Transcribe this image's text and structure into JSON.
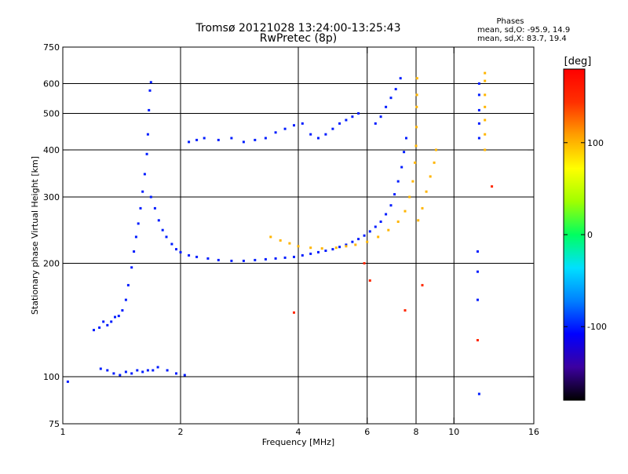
{
  "chart_data": {
    "type": "scatter",
    "title": "Tromsø 20121028 13:24:00-13:25:43",
    "subtitle": "RwPretec (8p)",
    "xlabel": "Frequency [MHz]",
    "ylabel": "Stationary phase Virtual Height [km]",
    "xscale": "log",
    "yscale": "log",
    "xlim": [
      1,
      16
    ],
    "ylim": [
      75,
      750
    ],
    "x_ticks": [
      1,
      2,
      4,
      6,
      8,
      10,
      16
    ],
    "y_ticks": [
      75,
      100,
      200,
      300,
      400,
      500,
      600,
      750
    ],
    "x_gridlines": [
      2,
      4,
      6,
      8,
      10
    ],
    "y_gridlines": [
      100,
      200,
      300,
      400,
      500,
      600
    ],
    "grid": true,
    "legend": {
      "title": "Phases",
      "lines": [
        "mean, sd,O: -95.9, 14.9",
        "mean, sd,X: 83.7, 19.4"
      ],
      "position": "top-right"
    },
    "colorbar": {
      "label": "[deg]",
      "ticks": [
        100,
        0,
        -100
      ],
      "range": [
        -180,
        180
      ],
      "stops": [
        "#000000",
        "#3c00a0",
        "#0000ff",
        "#0080ff",
        "#00e0ff",
        "#00ff60",
        "#a0ff00",
        "#ffff00",
        "#ffa000",
        "#ff3000",
        "#ff0000"
      ]
    },
    "traces": [
      {
        "phase_deg": -100,
        "points": [
          [
            1.03,
            97
          ],
          [
            1.2,
            133
          ],
          [
            1.24,
            135
          ],
          [
            1.27,
            140
          ],
          [
            1.3,
            137
          ],
          [
            1.33,
            140
          ],
          [
            1.36,
            144
          ],
          [
            1.39,
            145
          ],
          [
            1.42,
            150
          ],
          [
            1.45,
            160
          ],
          [
            1.47,
            175
          ],
          [
            1.5,
            195
          ],
          [
            1.52,
            215
          ],
          [
            1.54,
            235
          ],
          [
            1.56,
            255
          ],
          [
            1.58,
            280
          ],
          [
            1.6,
            310
          ],
          [
            1.62,
            345
          ],
          [
            1.64,
            390
          ],
          [
            1.65,
            440
          ],
          [
            1.66,
            510
          ],
          [
            1.67,
            575
          ],
          [
            1.68,
            605
          ]
        ]
      },
      {
        "phase_deg": -100,
        "points": [
          [
            1.25,
            105
          ],
          [
            1.3,
            104
          ],
          [
            1.35,
            102
          ],
          [
            1.4,
            101
          ],
          [
            1.45,
            103
          ],
          [
            1.5,
            102
          ],
          [
            1.55,
            104
          ],
          [
            1.6,
            103
          ],
          [
            1.65,
            104
          ],
          [
            1.7,
            104
          ],
          [
            1.75,
            106
          ],
          [
            1.85,
            104
          ],
          [
            1.95,
            102
          ],
          [
            2.05,
            101
          ]
        ]
      },
      {
        "phase_deg": -100,
        "points": [
          [
            1.68,
            300
          ],
          [
            1.72,
            280
          ],
          [
            1.76,
            260
          ],
          [
            1.8,
            245
          ],
          [
            1.84,
            235
          ],
          [
            1.9,
            225
          ],
          [
            1.95,
            218
          ],
          [
            2.0,
            214
          ],
          [
            2.1,
            210
          ],
          [
            2.2,
            208
          ],
          [
            2.35,
            206
          ],
          [
            2.5,
            204
          ],
          [
            2.7,
            203
          ],
          [
            2.9,
            203
          ],
          [
            3.1,
            204
          ],
          [
            3.3,
            205
          ],
          [
            3.5,
            206
          ],
          [
            3.7,
            207
          ],
          [
            3.9,
            208
          ],
          [
            4.1,
            210
          ],
          [
            4.3,
            212
          ],
          [
            4.5,
            214
          ],
          [
            4.7,
            216
          ],
          [
            4.9,
            218
          ],
          [
            5.1,
            221
          ],
          [
            5.3,
            224
          ],
          [
            5.5,
            228
          ],
          [
            5.7,
            232
          ],
          [
            5.9,
            237
          ],
          [
            6.1,
            243
          ],
          [
            6.3,
            250
          ],
          [
            6.5,
            258
          ],
          [
            6.7,
            270
          ],
          [
            6.9,
            285
          ],
          [
            7.05,
            305
          ],
          [
            7.2,
            330
          ],
          [
            7.35,
            360
          ],
          [
            7.45,
            395
          ],
          [
            7.55,
            430
          ]
        ]
      },
      {
        "phase_deg": -100,
        "points": [
          [
            2.1,
            420
          ],
          [
            2.2,
            425
          ],
          [
            2.3,
            430
          ],
          [
            2.5,
            425
          ],
          [
            2.7,
            430
          ],
          [
            2.9,
            420
          ],
          [
            3.1,
            425
          ],
          [
            3.3,
            430
          ],
          [
            3.5,
            445
          ],
          [
            3.7,
            455
          ],
          [
            3.9,
            465
          ],
          [
            4.1,
            470
          ],
          [
            4.3,
            440
          ],
          [
            4.5,
            430
          ],
          [
            4.7,
            440
          ],
          [
            4.9,
            455
          ],
          [
            5.1,
            470
          ],
          [
            5.3,
            480
          ],
          [
            5.5,
            490
          ],
          [
            5.7,
            500
          ],
          [
            6.3,
            470
          ],
          [
            6.5,
            490
          ],
          [
            6.7,
            520
          ],
          [
            6.9,
            550
          ],
          [
            7.1,
            580
          ],
          [
            7.3,
            620
          ]
        ]
      },
      {
        "phase_deg": 100,
        "points": [
          [
            3.4,
            235
          ],
          [
            3.6,
            230
          ],
          [
            3.8,
            226
          ],
          [
            4.0,
            222
          ],
          [
            4.3,
            220
          ],
          [
            4.6,
            219
          ],
          [
            5.0,
            220
          ],
          [
            5.3,
            222
          ],
          [
            5.6,
            224
          ],
          [
            6.0,
            228
          ],
          [
            6.4,
            235
          ],
          [
            6.8,
            245
          ],
          [
            7.2,
            258
          ],
          [
            7.5,
            275
          ],
          [
            7.7,
            300
          ],
          [
            7.85,
            330
          ],
          [
            7.95,
            370
          ],
          [
            8.0,
            410
          ],
          [
            8.02,
            460
          ],
          [
            8.03,
            520
          ],
          [
            8.04,
            560
          ],
          [
            8.05,
            620
          ]
        ]
      },
      {
        "phase_deg": 100,
        "points": [
          [
            8.1,
            260
          ],
          [
            8.3,
            280
          ],
          [
            8.5,
            310
          ],
          [
            8.7,
            340
          ],
          [
            8.9,
            370
          ],
          [
            9.0,
            400
          ]
        ]
      },
      {
        "phase_deg": -100,
        "points": [
          [
            11.6,
            430
          ],
          [
            11.6,
            470
          ],
          [
            11.6,
            510
          ],
          [
            11.6,
            560
          ],
          [
            11.6,
            600
          ],
          [
            11.5,
            160
          ],
          [
            11.5,
            190
          ],
          [
            11.5,
            215
          ],
          [
            11.6,
            90
          ]
        ]
      },
      {
        "phase_deg": 100,
        "points": [
          [
            12.0,
            400
          ],
          [
            12.0,
            440
          ],
          [
            12.0,
            480
          ],
          [
            12.0,
            520
          ],
          [
            12.0,
            560
          ],
          [
            12.0,
            610
          ],
          [
            12.0,
            640
          ]
        ]
      },
      {
        "phase_deg": 150,
        "points": [
          [
            3.9,
            148
          ],
          [
            5.9,
            200
          ],
          [
            6.1,
            180
          ],
          [
            7.5,
            150
          ],
          [
            8.3,
            175
          ],
          [
            11.5,
            125
          ],
          [
            12.5,
            320
          ]
        ]
      }
    ]
  }
}
